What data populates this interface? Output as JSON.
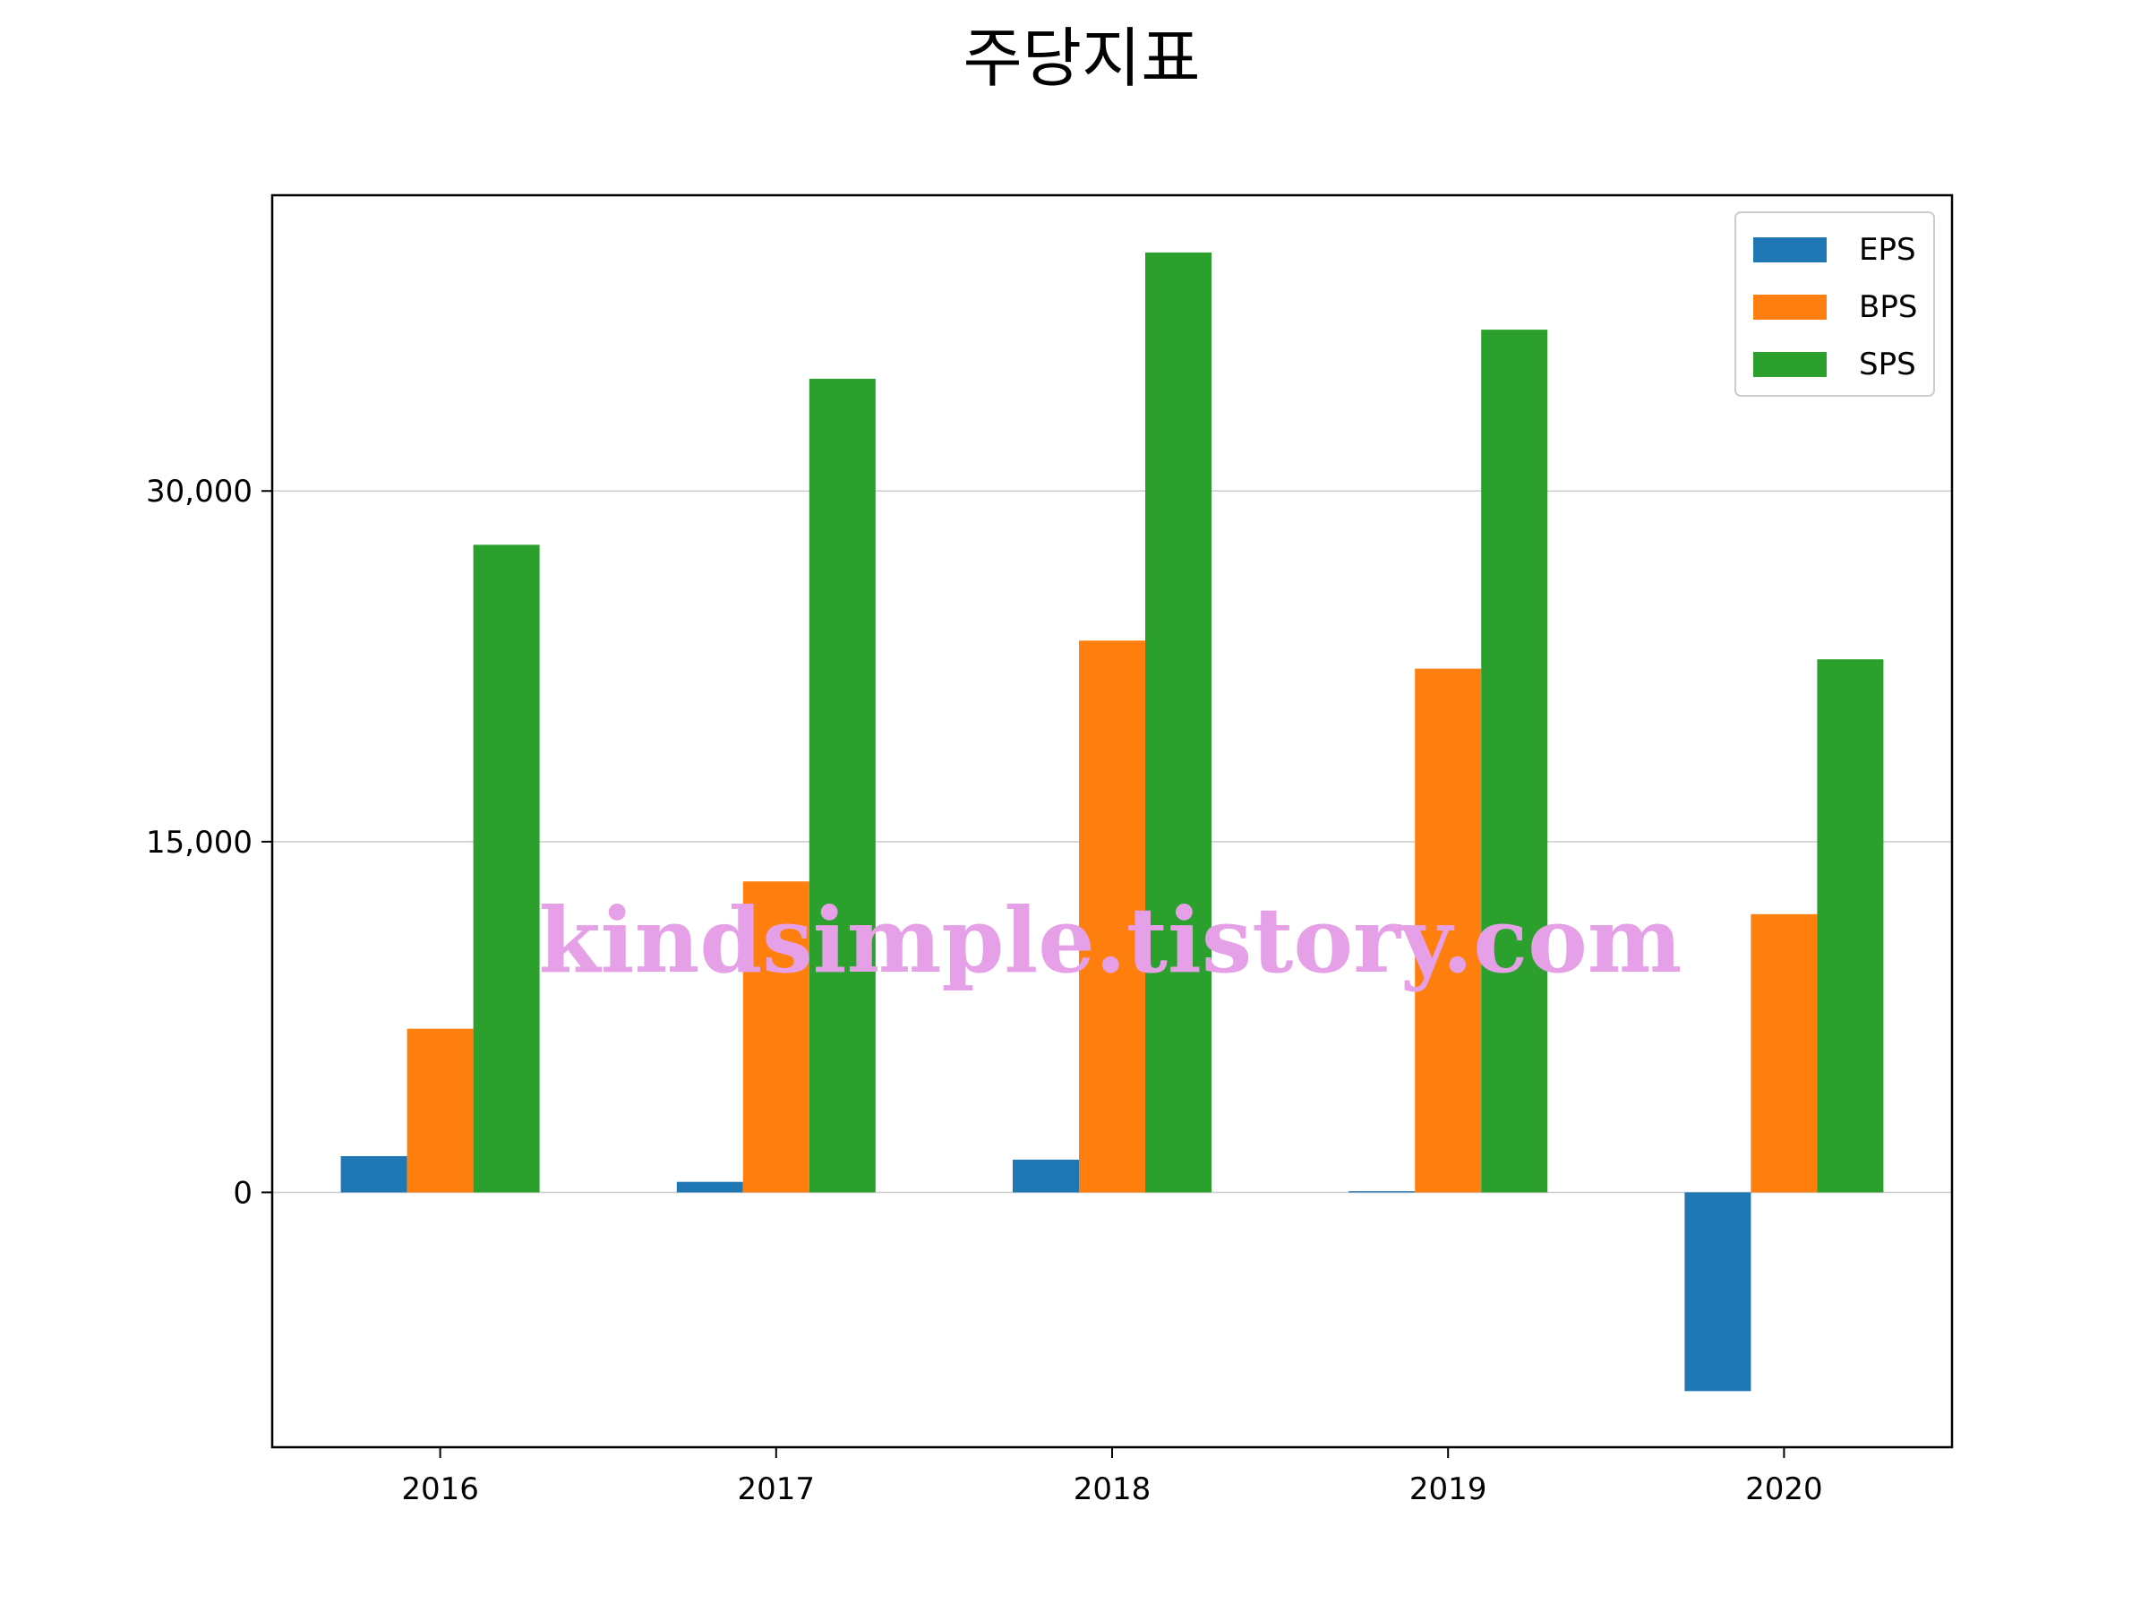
{
  "chart_data": {
    "type": "bar",
    "title": "주당지표",
    "categories": [
      "2016",
      "2017",
      "2018",
      "2019",
      "2020"
    ],
    "series": [
      {
        "name": "EPS",
        "color": "#1f77b4",
        "values": [
          1550,
          450,
          1400,
          50,
          -8500
        ]
      },
      {
        "name": "BPS",
        "color": "#ff7f0e",
        "values": [
          7000,
          13300,
          23600,
          22400,
          11900
        ]
      },
      {
        "name": "SPS",
        "color": "#2ca02c",
        "values": [
          27700,
          34800,
          40200,
          36900,
          22800
        ]
      }
    ],
    "ylim": [
      -10900,
      42650
    ],
    "yticks": [
      0,
      15000,
      30000
    ],
    "ytick_labels": [
      "0",
      "15,000",
      "30,000"
    ],
    "grid": "y",
    "legend": "top-right"
  },
  "watermark": {
    "text": "kindsimple.tistory.com",
    "color": "#e6a0e8"
  }
}
